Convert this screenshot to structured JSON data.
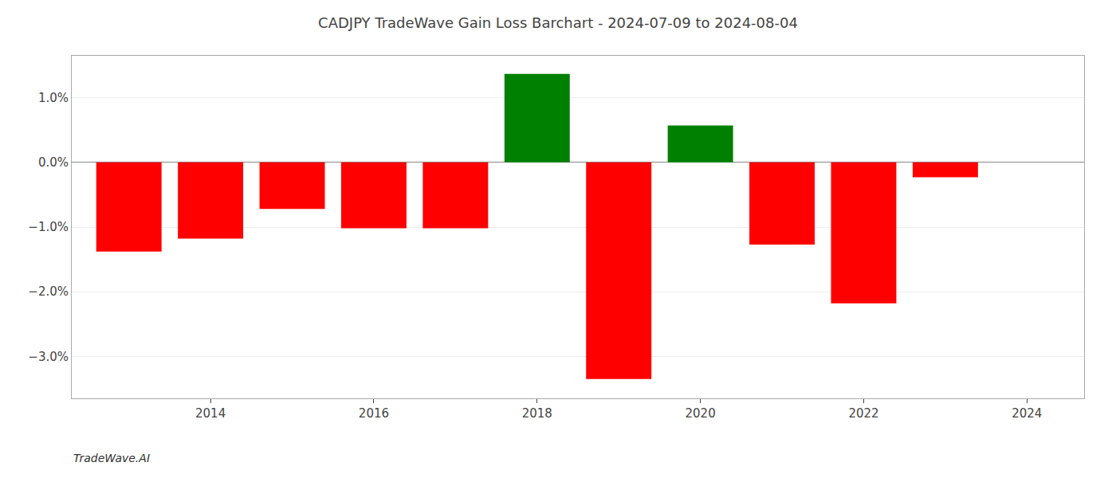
{
  "chart_data": {
    "type": "bar",
    "title": "CADJPY TradeWave Gain Loss Barchart - 2024-07-09 to 2024-08-04",
    "annotations": [
      "TradeWave.AI"
    ],
    "x": [
      2013,
      2014,
      2015,
      2016,
      2017,
      2018,
      2019,
      2020,
      2021,
      2022,
      2023
    ],
    "values": [
      -1.38,
      -1.18,
      -0.72,
      -1.02,
      -1.02,
      1.37,
      -3.35,
      0.57,
      -1.27,
      -2.18,
      -0.23
    ],
    "colors": [
      "#ff0000",
      "#ff0000",
      "#ff0000",
      "#ff0000",
      "#ff0000",
      "#008000",
      "#ff0000",
      "#008000",
      "#ff0000",
      "#ff0000",
      "#ff0000"
    ],
    "xlim": [
      2012.3,
      2024.7
    ],
    "xticks": [
      2014,
      2016,
      2018,
      2020,
      2022,
      2024
    ],
    "ylim": [
      -3.65,
      1.65
    ],
    "yticks": [
      {
        "value": -3.0,
        "label": "−3.0%"
      },
      {
        "value": -2.0,
        "label": "−2.0%"
      },
      {
        "value": -1.0,
        "label": "−1.0%"
      },
      {
        "value": 0.0,
        "label": "0.0%"
      },
      {
        "value": 1.0,
        "label": "1.0%"
      }
    ],
    "grid": true
  }
}
